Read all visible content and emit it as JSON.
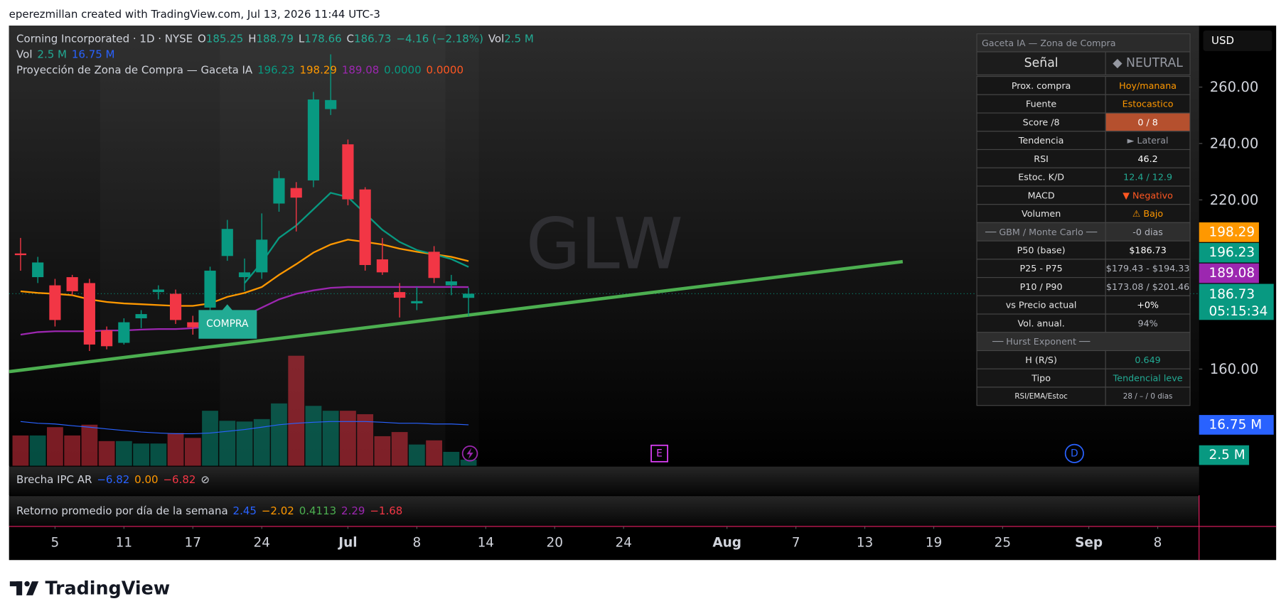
{
  "header": {
    "text": "eperezmillan created with TradingView.com, Jul 13, 2026 11:44 UTC-3"
  },
  "chart_data": {
    "type": "candlestick",
    "watermark": "GLW",
    "currency": "USD",
    "legend": [
      {
        "groups": [
          [
            {
              "text": "Corning Incorporated · 1D · NYSE",
              "color": "#d1d4dc"
            }
          ],
          [
            {
              "text": "O",
              "color": "#d1d4dc"
            },
            {
              "text": "185.25",
              "color": "#22ab94"
            }
          ],
          [
            {
              "text": "H",
              "color": "#d1d4dc"
            },
            {
              "text": "188.79",
              "color": "#22ab94"
            }
          ],
          [
            {
              "text": "L",
              "color": "#d1d4dc"
            },
            {
              "text": "178.66",
              "color": "#22ab94"
            }
          ],
          [
            {
              "text": "C",
              "color": "#d1d4dc"
            },
            {
              "text": "186.73",
              "color": "#22ab94"
            }
          ],
          [
            {
              "text": "−4.16 (−2.18%)",
              "color": "#22ab94"
            }
          ],
          [
            {
              "text": "Vol",
              "color": "#d1d4dc"
            },
            {
              "text": "2.5 M",
              "color": "#22ab94"
            }
          ]
        ]
      },
      {
        "groups": [
          [
            {
              "text": "Vol",
              "color": "#d1d4dc"
            }
          ],
          [
            {
              "text": "2.5 M",
              "color": "#22ab94"
            }
          ],
          [
            {
              "text": "16.75 M",
              "color": "#2962ff"
            }
          ]
        ]
      },
      {
        "groups": [
          [
            {
              "text": "Proyección de Zona de Compra — Gaceta IA",
              "color": "#d1d4dc"
            }
          ],
          [
            {
              "text": "196.23",
              "color": "#089981"
            }
          ],
          [
            {
              "text": "198.29",
              "color": "#ff9800"
            }
          ],
          [
            {
              "text": "189.08",
              "color": "#9c27b0"
            }
          ],
          [
            {
              "text": "0.0000",
              "color": "#089981"
            }
          ],
          [
            {
              "text": "0.0000",
              "color": "#ff5722"
            }
          ]
        ]
      }
    ],
    "x": [
      0,
      1,
      2,
      3,
      4,
      5,
      6,
      7,
      8,
      9,
      10,
      11,
      12,
      13,
      14,
      15,
      16,
      17,
      18,
      19,
      20,
      21,
      22,
      23,
      24,
      25,
      26
    ],
    "open": [
      201.0,
      192.6,
      189.7,
      192.6,
      190.5,
      173.7,
      169.3,
      178.0,
      187.3,
      186.7,
      176.6,
      181.8,
      200.1,
      192.6,
      194.3,
      218.7,
      224.2,
      226.9,
      252.2,
      239.7,
      223.7,
      198.9,
      187.3,
      183.3,
      201.6,
      189.7,
      185.25
    ],
    "high": [
      206.5,
      199.8,
      192.0,
      193.4,
      192.0,
      175.1,
      178.0,
      180.9,
      189.7,
      188.2,
      178.9,
      196.3,
      212.9,
      199.2,
      215.2,
      230.3,
      226.3,
      258.3,
      271.6,
      241.4,
      224.5,
      206.5,
      190.5,
      189.1,
      203.6,
      193.4,
      188.79
    ],
    "low": [
      194.9,
      190.5,
      175.1,
      186.2,
      166.4,
      167.0,
      168.7,
      174.5,
      184.7,
      176.0,
      172.2,
      180.3,
      198.4,
      187.6,
      192.0,
      215.8,
      208.8,
      224.5,
      250.1,
      218.1,
      194.9,
      193.4,
      178.3,
      180.9,
      190.5,
      186.2,
      178.66
    ],
    "close": [
      200.4,
      197.8,
      177.4,
      187.6,
      168.7,
      168.1,
      176.6,
      179.5,
      188.2,
      177.4,
      174.8,
      194.9,
      209.7,
      194.3,
      205.9,
      227.7,
      220.8,
      255.6,
      255.4,
      220.2,
      196.9,
      194.3,
      185.3,
      184.1,
      192.3,
      191.1,
      186.73
    ],
    "up_color": "#089981",
    "down_color": "#f23645",
    "xlim": [
      -0.67,
      68.4
    ],
    "xticks": [
      {
        "value": 2,
        "label": "5"
      },
      {
        "value": 6,
        "label": "11"
      },
      {
        "value": 10,
        "label": "17"
      },
      {
        "value": 14,
        "label": "24"
      },
      {
        "value": 19,
        "label": "Jul"
      },
      {
        "value": 23,
        "label": "8"
      },
      {
        "value": 27,
        "label": "14"
      },
      {
        "value": 31,
        "label": "20"
      },
      {
        "value": 35,
        "label": "24"
      },
      {
        "value": 41,
        "label": "Aug"
      },
      {
        "value": 45,
        "label": "7"
      },
      {
        "value": 49,
        "label": "13"
      },
      {
        "value": 53,
        "label": "19"
      },
      {
        "value": 57,
        "label": "25"
      },
      {
        "value": 62,
        "label": "Sep"
      },
      {
        "value": 66,
        "label": "8"
      }
    ],
    "ylim": [
      125.7,
      281.8
    ],
    "yticks": [
      {
        "value": 260,
        "label": "260.00"
      },
      {
        "value": 240,
        "label": "240.00"
      },
      {
        "value": 220,
        "label": "220.00"
      },
      {
        "value": 160,
        "label": "160.00"
      }
    ],
    "grid": false,
    "series": [
      {
        "color": "#ff9800",
        "values": [
          187.6,
          187.0,
          186.7,
          186.2,
          184.7,
          183.8,
          183.3,
          183.0,
          182.7,
          182.4,
          182.4,
          183.3,
          185.6,
          187.0,
          189.1,
          193.4,
          197.2,
          201.3,
          204.2,
          205.9,
          205.1,
          204.2,
          202.7,
          201.6,
          200.7,
          199.8,
          198.29
        ]
      },
      {
        "color": "#9c27b0",
        "values": [
          172.2,
          173.1,
          173.4,
          173.4,
          173.4,
          173.7,
          173.7,
          174.0,
          174.2,
          174.2,
          174.5,
          175.1,
          176.6,
          178.9,
          181.8,
          184.7,
          186.7,
          187.9,
          188.8,
          189.1,
          189.1,
          189.1,
          189.1,
          189.1,
          189.1,
          189.1,
          189.08
        ]
      },
      {
        "color": "#089981",
        "values": [
          null,
          null,
          null,
          null,
          null,
          null,
          null,
          null,
          null,
          null,
          null,
          null,
          null,
          190.5,
          197.8,
          206.5,
          210.9,
          216.7,
          222.5,
          221.0,
          215.2,
          209.4,
          205.1,
          202.2,
          200.7,
          199.0,
          196.23
        ]
      }
    ],
    "trendline": {
      "color": "#4caf50",
      "x": [
        -0.67,
        51.2
      ],
      "values": [
        159.1,
        198.1
      ]
    },
    "volume": {
      "values": [
        12.4,
        12.4,
        15.8,
        12.4,
        16.8,
        10.1,
        10.1,
        9.1,
        9.1,
        13.4,
        11.4,
        22.5,
        18.4,
        18.1,
        19.1,
        25.5,
        45.0,
        24.5,
        22.5,
        22.5,
        21.1,
        12.1,
        13.8,
        8.7,
        10.4,
        5.7,
        2.5
      ],
      "ma": [
        18.1,
        17.4,
        17.1,
        16.4,
        15.8,
        15.1,
        14.4,
        13.8,
        13.4,
        13.1,
        13.1,
        13.4,
        14.1,
        14.8,
        15.8,
        16.8,
        17.4,
        17.8,
        18.1,
        18.1,
        18.1,
        17.8,
        17.4,
        17.4,
        17.1,
        17.1,
        16.75
      ],
      "ma_color": "#2962ff",
      "ylim": [
        0,
        180
      ],
      "badges": [
        {
          "value": 16.75,
          "label": "16.75 M",
          "color": "#2962ff"
        },
        {
          "value": 2.5,
          "label": "2.5 M",
          "color": "#089981"
        }
      ]
    },
    "price_badges": [
      {
        "value": 198.29,
        "label": "198.29",
        "color": "#ff9800"
      },
      {
        "value": 196.23,
        "label": "196.23",
        "color": "#089981"
      },
      {
        "value": 189.08,
        "label": "189.08",
        "color": "#9c27b0"
      }
    ],
    "last_price": {
      "label": "186.73",
      "countdown": "05:15:34",
      "color": "#089981"
    },
    "annotations": [
      {
        "text": "COMPRA",
        "x": 12,
        "color": "#22ab94"
      }
    ]
  },
  "panel": {
    "title": "Gaceta IA — Zona de Compra",
    "signal": {
      "label": "Señal",
      "value": "◆ NEUTRAL"
    },
    "rows": [
      {
        "label": "Prox. compra",
        "value": "Hoy/manana",
        "color": "#ff9800"
      },
      {
        "label": "Fuente",
        "value": "Estocastico",
        "color": "#ff9800"
      },
      {
        "label": "Score /8",
        "value": "0 / 8",
        "color": "#ffffff",
        "bg": "#b5502e"
      },
      {
        "label": "Tendencia",
        "value": "► Lateral",
        "color": "#9598a1"
      },
      {
        "label": "RSI",
        "value": "46.2",
        "color": "#ffffff"
      },
      {
        "label": "Estoc. K/D",
        "value": "12.4 / 12.9",
        "color": "#22ab94"
      },
      {
        "label": "MACD",
        "value": "▼ Negativo",
        "color": "#ff5722"
      },
      {
        "label": "Volumen",
        "value": "⚠ Bajo",
        "color": "#ff9800"
      },
      {
        "section": "── GBM / Monte Carlo ──",
        "value": "-0 dias",
        "color": "#b2b5be"
      },
      {
        "label": "P50 (base)",
        "value": "$186.73",
        "color": "#ffffff"
      },
      {
        "label": "P25 - P75",
        "value": "$179.43 - $194.33",
        "color": "#b2b5be"
      },
      {
        "label": "P10 / P90",
        "value": "$173.08 / $201.46",
        "color": "#b2b5be"
      },
      {
        "label": "vs Precio actual",
        "value": "+0%",
        "color": "#ffffff"
      },
      {
        "label": "Vol. anual.",
        "value": "94%",
        "color": "#b2b5be"
      },
      {
        "section": "── Hurst Exponent ──"
      },
      {
        "label": "H (R/S)",
        "value": "0.649",
        "color": "#22ab94"
      },
      {
        "label": "Tipo",
        "value": "Tendencial leve",
        "color": "#22ab94"
      },
      {
        "label": "RSI/EMA/Estoc",
        "value": "28 / – / 0 dias",
        "color": "#b2b5be",
        "small": true
      }
    ]
  },
  "panes": [
    {
      "groups": [
        [
          {
            "text": "Brecha IPC AR",
            "color": "#d1d4dc"
          }
        ],
        [
          {
            "text": "−6.82",
            "color": "#2962ff"
          }
        ],
        [
          {
            "text": "0.00",
            "color": "#ff9800"
          }
        ],
        [
          {
            "text": "−6.82",
            "color": "#f23645"
          }
        ],
        [
          {
            "text": "⊘",
            "color": "#d1d4dc"
          }
        ]
      ]
    },
    {
      "groups": [
        [
          {
            "text": "Retorno promedio por día de la semana",
            "color": "#d1d4dc"
          }
        ],
        [
          {
            "text": "2.45",
            "color": "#2962ff"
          }
        ],
        [
          {
            "text": "−2.02",
            "color": "#ff9800"
          }
        ],
        [
          {
            "text": "0.4113",
            "color": "#4caf50"
          }
        ],
        [
          {
            "text": "2.29",
            "color": "#9c27b0"
          }
        ],
        [
          {
            "text": "−1.68",
            "color": "#f23645"
          }
        ]
      ]
    }
  ],
  "events": [
    "E",
    "D"
  ],
  "footer": {
    "brand": "TradingView"
  }
}
